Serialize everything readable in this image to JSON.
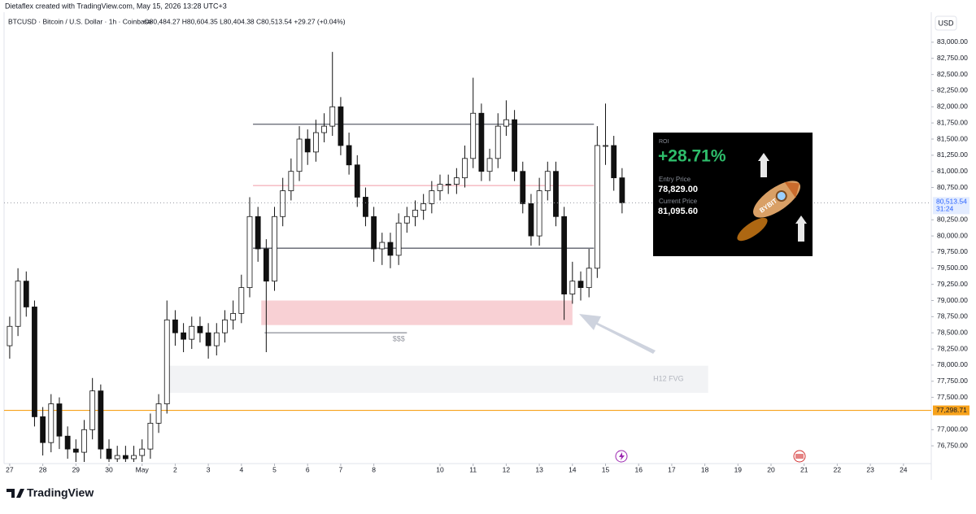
{
  "header": {
    "credit": "Dietaflex created with TradingView.com, May 15, 2026 13:28 UTC+3",
    "symbol": "BTCUSD · Bitcoin / U.S. Dollar · 1h · Coinbase",
    "ohlc": "O80,484.27 H80,604.35 L80,404.38 C80,513.54 +29.27 (+0.04%)"
  },
  "chart_data": {
    "type": "candlestick",
    "currency": "USD",
    "up_color": "#ffffff",
    "down_color": "#111111",
    "wick_color": "#111111",
    "xlim": [
      -0.17,
      27.84
    ],
    "ylim": [
      76500,
      83150
    ],
    "xticks": [
      {
        "value": 0,
        "label": "27"
      },
      {
        "value": 1,
        "label": "28"
      },
      {
        "value": 2,
        "label": "29"
      },
      {
        "value": 3,
        "label": "30"
      },
      {
        "value": 4,
        "label": "May"
      },
      {
        "value": 5,
        "label": "2"
      },
      {
        "value": 6,
        "label": "3"
      },
      {
        "value": 7,
        "label": "4"
      },
      {
        "value": 8,
        "label": "5"
      },
      {
        "value": 9,
        "label": "6"
      },
      {
        "value": 10,
        "label": "7"
      },
      {
        "value": 11,
        "label": "8"
      },
      {
        "value": 13,
        "label": "10"
      },
      {
        "value": 14,
        "label": "11"
      },
      {
        "value": 15,
        "label": "12"
      },
      {
        "value": 16,
        "label": "13"
      },
      {
        "value": 17,
        "label": "14"
      },
      {
        "value": 18,
        "label": "15"
      },
      {
        "value": 19,
        "label": "16"
      },
      {
        "value": 20,
        "label": "17"
      },
      {
        "value": 21,
        "label": "18"
      },
      {
        "value": 22,
        "label": "19"
      },
      {
        "value": 23,
        "label": "20"
      },
      {
        "value": 24,
        "label": "21"
      },
      {
        "value": 25,
        "label": "22"
      },
      {
        "value": 26,
        "label": "23"
      },
      {
        "value": 27,
        "label": "24"
      }
    ],
    "yticks": [
      {
        "value": 83000,
        "label": "83,000.00"
      },
      {
        "value": 82750,
        "label": "82,750.00"
      },
      {
        "value": 82500,
        "label": "82,500.00"
      },
      {
        "value": 82250,
        "label": "82,250.00"
      },
      {
        "value": 82000,
        "label": "82,000.00"
      },
      {
        "value": 81750,
        "label": "81,750.00"
      },
      {
        "value": 81500,
        "label": "81,500.00"
      },
      {
        "value": 81250,
        "label": "81,250.00"
      },
      {
        "value": 81000,
        "label": "81,000.00"
      },
      {
        "value": 80750,
        "label": "80,750.00"
      },
      {
        "value": 80250,
        "label": "80,250.00"
      },
      {
        "value": 80000,
        "label": "80,000.00"
      },
      {
        "value": 79750,
        "label": "79,750.00"
      },
      {
        "value": 79500,
        "label": "79,500.00"
      },
      {
        "value": 79250,
        "label": "79,250.00"
      },
      {
        "value": 79000,
        "label": "79,000.00"
      },
      {
        "value": 78750,
        "label": "78,750.00"
      },
      {
        "value": 78500,
        "label": "78,500.00"
      },
      {
        "value": 78250,
        "label": "78,250.00"
      },
      {
        "value": 78000,
        "label": "78,000.00"
      },
      {
        "value": 77750,
        "label": "77,750.00"
      },
      {
        "value": 77500,
        "label": "77,500.00"
      },
      {
        "value": 77000,
        "label": "77,000.00"
      },
      {
        "value": 76750,
        "label": "76,750.00"
      }
    ],
    "x": [
      0,
      0.25,
      0.5,
      0.75,
      1,
      1.25,
      1.5,
      1.75,
      2,
      2.25,
      2.5,
      2.75,
      3,
      3.25,
      3.5,
      3.75,
      4,
      4.25,
      4.5,
      4.75,
      5,
      5.25,
      5.5,
      5.75,
      6,
      6.25,
      6.5,
      6.75,
      7,
      7.25,
      7.5,
      7.75,
      8,
      8.25,
      8.5,
      8.75,
      9,
      9.25,
      9.5,
      9.75,
      10,
      10.25,
      10.5,
      10.75,
      11,
      11.25,
      11.5,
      11.75,
      12,
      12.25,
      12.5,
      12.75,
      13,
      13.25,
      13.5,
      13.75,
      14,
      14.25,
      14.5,
      14.75,
      15,
      15.25,
      15.5,
      15.75,
      16,
      16.25,
      16.5,
      16.75,
      17,
      17.25,
      17.5,
      17.75,
      18,
      18.25,
      18.5
    ],
    "open": [
      78300,
      78600,
      79300,
      78900,
      77200,
      76800,
      77400,
      76900,
      76700,
      76650,
      77000,
      77600,
      76700,
      76550,
      76600,
      76550,
      76600,
      76700,
      77100,
      77400,
      78700,
      78500,
      78400,
      78600,
      78500,
      78300,
      78500,
      78700,
      78800,
      79200,
      80300,
      79800,
      79300,
      80300,
      80700,
      81000,
      81500,
      81300,
      81600,
      81700,
      82000,
      81400,
      81100,
      80600,
      80300,
      79800,
      79900,
      79700,
      80200,
      80300,
      80400,
      80500,
      80700,
      80800,
      80800,
      80900,
      81200,
      81900,
      81000,
      81200,
      81700,
      81800,
      81000,
      80500,
      80000,
      80700,
      81000,
      80300,
      79100,
      79300,
      79200,
      79500,
      81400,
      81400,
      80900
    ],
    "high": [
      78750,
      79500,
      79450,
      79000,
      77350,
      77550,
      77500,
      77050,
      76850,
      77150,
      77800,
      77700,
      76850,
      76750,
      76750,
      76750,
      76850,
      77250,
      77550,
      79000,
      78850,
      78650,
      78750,
      78750,
      78650,
      78650,
      78850,
      79000,
      79400,
      80600,
      80450,
      79950,
      80450,
      80900,
      81200,
      81700,
      81650,
      81800,
      81900,
      82850,
      82150,
      81600,
      81250,
      80750,
      80450,
      80050,
      80050,
      80350,
      80450,
      80550,
      80650,
      80850,
      80950,
      80950,
      81050,
      81400,
      82450,
      82050,
      81350,
      81900,
      82100,
      81950,
      81150,
      80650,
      80900,
      81150,
      81150,
      80450,
      79600,
      79450,
      79800,
      81700,
      82050,
      81550,
      81050
    ],
    "low": [
      78100,
      78450,
      78750,
      77050,
      76600,
      76650,
      76700,
      76550,
      76500,
      76500,
      76850,
      76550,
      76500,
      76500,
      76500,
      76500,
      76500,
      76550,
      76950,
      77250,
      78300,
      78200,
      78250,
      78350,
      78100,
      78150,
      78350,
      78550,
      78650,
      79050,
      79600,
      78200,
      79150,
      80150,
      80550,
      80850,
      81100,
      81150,
      81450,
      81550,
      81250,
      80950,
      80450,
      80150,
      79600,
      79550,
      79500,
      79550,
      80050,
      80150,
      80250,
      80350,
      80550,
      80650,
      80650,
      80750,
      81050,
      80850,
      80850,
      81050,
      81550,
      80850,
      80350,
      79850,
      79850,
      80550,
      80150,
      78700,
      78950,
      79000,
      79050,
      79350,
      81100,
      80700,
      80350
    ],
    "close": [
      78600,
      79300,
      78900,
      77200,
      76800,
      77400,
      76900,
      76700,
      76650,
      77000,
      77600,
      76700,
      76550,
      76600,
      76550,
      76600,
      76700,
      77100,
      77400,
      78700,
      78500,
      78400,
      78600,
      78500,
      78300,
      78500,
      78700,
      78800,
      79200,
      80300,
      79800,
      79300,
      80300,
      80700,
      81000,
      81500,
      81300,
      81600,
      81700,
      82000,
      81400,
      81100,
      80600,
      80300,
      79800,
      79900,
      79700,
      80200,
      80300,
      80400,
      80500,
      80700,
      80800,
      80800,
      80900,
      81200,
      81900,
      81000,
      81200,
      81700,
      81800,
      81000,
      80500,
      80000,
      80700,
      81000,
      80300,
      79100,
      79300,
      79200,
      79500,
      81400,
      81400,
      80900,
      80513.54
    ],
    "last_price": {
      "value": 80513.54,
      "label": "80,513.54",
      "countdown": "31:24",
      "color": "#2962ff"
    },
    "price_line": {
      "value": 77298.71,
      "label": "77,298.71",
      "color": "#f7a21b"
    },
    "zones": [
      {
        "y": [
          78620,
          79000
        ],
        "x": [
          7.6,
          17.0
        ],
        "color": "#f8d0d4"
      },
      {
        "y": [
          77570,
          77990
        ],
        "x": [
          4.8,
          21.1
        ],
        "color": "#f2f3f5",
        "label": "H12 FVG"
      }
    ],
    "lines": [
      {
        "y": 81730,
        "x": [
          7.35,
          17.65
        ],
        "color": "#5d606b"
      },
      {
        "y": 79810,
        "x": [
          7.35,
          17.65
        ],
        "color": "#5d606b"
      },
      {
        "y": 80780,
        "x": [
          7.35,
          17.65
        ],
        "color": "#f4b6be"
      },
      {
        "y": 78500,
        "x": [
          7.7,
          12.0
        ],
        "color": "#9598a1",
        "label": "$$$"
      }
    ]
  },
  "card": {
    "title": "ROI",
    "roi": "+28.71%",
    "entry_label": "Entry Price",
    "entry": "78,829.00",
    "current_label": "Current Price",
    "current": "81,095.60",
    "brand": "BYBIT"
  },
  "footer": {
    "logo": "TradingView"
  }
}
